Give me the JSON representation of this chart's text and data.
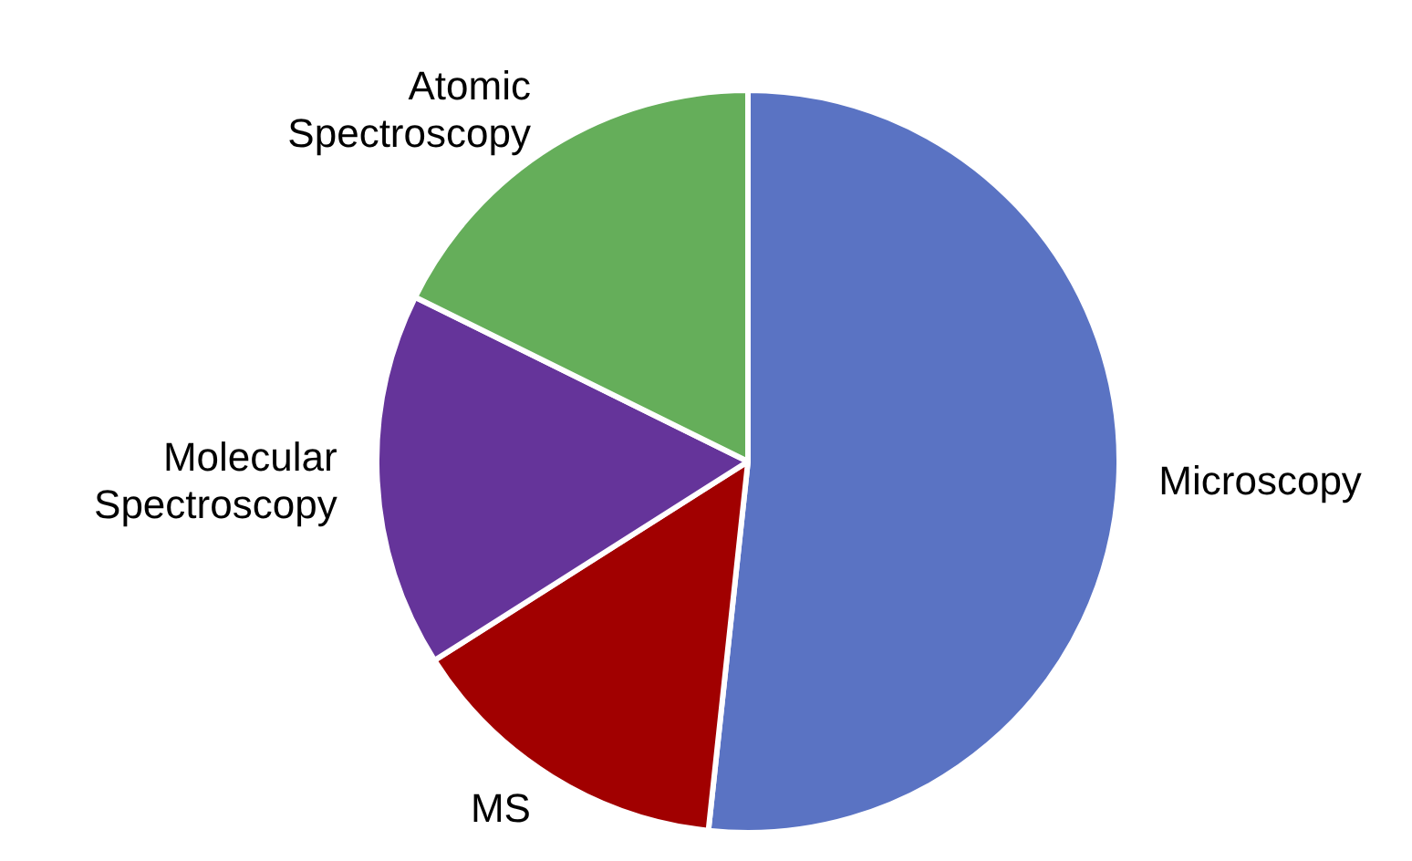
{
  "chart_data": {
    "type": "pie",
    "categories": [
      "Microscopy",
      "MS",
      "Molecular Spectroscopy",
      "Atomic Spectroscopy"
    ],
    "values": [
      51.7,
      14.3,
      16.3,
      17.7
    ],
    "colors": [
      "#5a73c3",
      "#a10000",
      "#65349a",
      "#65ae5a"
    ],
    "legend": false
  }
}
